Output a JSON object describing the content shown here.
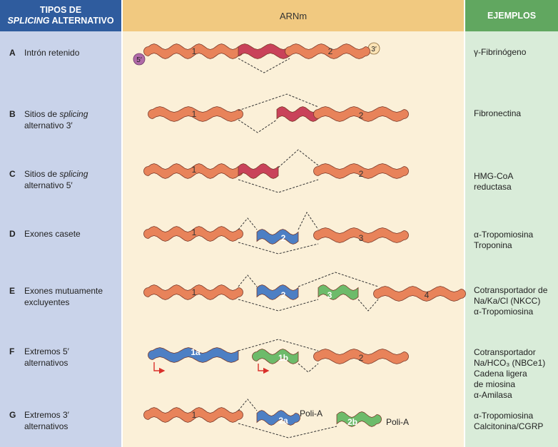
{
  "header": {
    "left_line1": "TIPOS DE",
    "left_line2_italic": "SPLICING",
    "left_line2_rest": " ALTERNATIVO",
    "middle": "ARNm",
    "right": "EJEMPLOS"
  },
  "colors": {
    "exon_orange": "#e8835a",
    "exon_red": "#c9425a",
    "exon_blue": "#4d7fc4",
    "exon_green": "#6dbb6a",
    "header_blue": "#2f5c9e",
    "header_orange": "#f1c980",
    "header_green": "#61a760"
  },
  "rows": [
    {
      "letter": "A",
      "label": [
        {
          "t": "Intrón retenido"
        }
      ],
      "examples": [
        "γ-Fibrinógeno"
      ]
    },
    {
      "letter": "B",
      "label": [
        {
          "t": "Sitios de "
        },
        {
          "i": "splicing"
        },
        {
          "br": true
        },
        {
          "t": "alternativo 3′"
        }
      ],
      "examples": [
        "Fibronectina"
      ]
    },
    {
      "letter": "C",
      "label": [
        {
          "t": "Sitios de "
        },
        {
          "i": "splicing"
        },
        {
          "br": true
        },
        {
          "t": "alternativo 5′"
        }
      ],
      "examples": [
        "HMG-CoA",
        "reductasa"
      ]
    },
    {
      "letter": "D",
      "label": [
        {
          "t": "Exones casete"
        }
      ],
      "examples": [
        "α-Tropomiosina",
        "Troponina"
      ]
    },
    {
      "letter": "E",
      "label": [
        {
          "t": "Exones mutuamente"
        },
        {
          "br": true
        },
        {
          "t": "excluyentes"
        }
      ],
      "examples": [
        "Cotransportador de",
        "Na/Ka/Cl (NKCC)",
        "α-Tropomiosina"
      ]
    },
    {
      "letter": "F",
      "label": [
        {
          "t": "Extremos 5′"
        },
        {
          "br": true
        },
        {
          "t": "alternativos"
        }
      ],
      "examples": [
        "Cotransportador",
        "Na/HCO₃ (NBCe1)",
        "Cadena ligera",
        "de miosina",
        "α-Amilasa"
      ]
    },
    {
      "letter": "G",
      "label": [
        {
          "t": "Extremos 3′"
        },
        {
          "br": true
        },
        {
          "t": "alternativos"
        }
      ],
      "examples": [
        "α-Tropomiosina",
        "Calcitonina/CGRP"
      ]
    }
  ],
  "diagram": {
    "cap5": "5′",
    "cap3": "3′",
    "exon_1": "1",
    "exon_2": "2",
    "exon_3": "3",
    "exon_4": "4",
    "exon_1a": "1a",
    "exon_1b": "1b",
    "exon_2a": "2a",
    "exon_2b": "2b",
    "polyA": "Poli-A"
  }
}
